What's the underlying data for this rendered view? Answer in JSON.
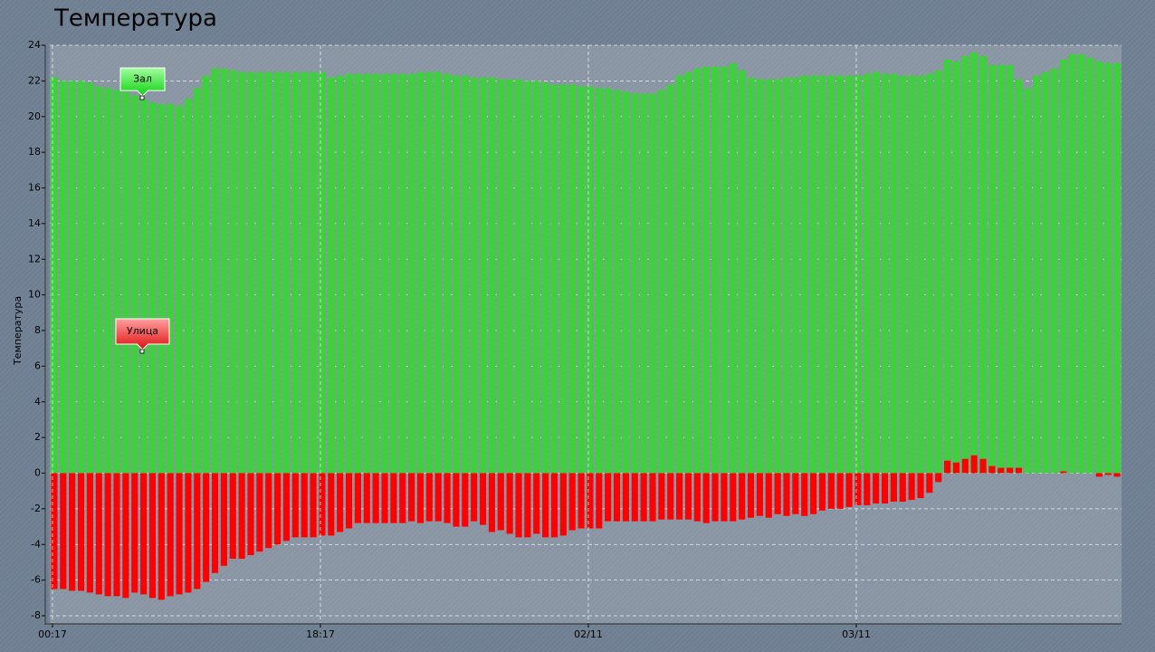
{
  "chart_data": {
    "type": "bar",
    "title": "Температура",
    "y_label": "Температура",
    "categories": [
      "00:17",
      null,
      null,
      null,
      null,
      null,
      null,
      null,
      null,
      null,
      null,
      null,
      null,
      null,
      null,
      null,
      null,
      null,
      null,
      null,
      null,
      null,
      null,
      null,
      null,
      null,
      null,
      null,
      null,
      null,
      "18:17",
      null,
      null,
      null,
      null,
      null,
      null,
      null,
      null,
      null,
      null,
      null,
      null,
      null,
      null,
      null,
      null,
      null,
      null,
      null,
      null,
      null,
      null,
      null,
      null,
      null,
      null,
      null,
      null,
      null,
      "02/11",
      null,
      null,
      null,
      null,
      null,
      null,
      null,
      null,
      null,
      null,
      null,
      null,
      null,
      null,
      null,
      null,
      null,
      null,
      null,
      null,
      null,
      null,
      null,
      null,
      null,
      null,
      null,
      null,
      null,
      "03/11",
      null,
      null,
      null,
      null,
      null,
      null,
      null,
      null,
      null,
      null,
      null,
      null,
      null,
      null,
      null,
      null,
      null,
      null,
      null,
      null,
      null,
      null,
      null,
      null,
      null,
      null,
      null,
      null,
      null
    ],
    "series": [
      {
        "name": "Зал",
        "color": "#3fcf3f",
        "values": [
          22.2,
          22.0,
          22.0,
          22.0,
          21.9,
          21.7,
          21.6,
          21.5,
          21.4,
          21.2,
          21.0,
          20.8,
          20.7,
          20.7,
          20.6,
          21.0,
          21.6,
          22.3,
          22.7,
          22.7,
          22.6,
          22.5,
          22.5,
          22.5,
          22.5,
          22.5,
          22.5,
          22.5,
          22.5,
          22.5,
          22.5,
          22.2,
          22.3,
          22.4,
          22.4,
          22.4,
          22.4,
          22.4,
          22.4,
          22.4,
          22.4,
          22.5,
          22.5,
          22.5,
          22.4,
          22.3,
          22.3,
          22.2,
          22.2,
          22.2,
          22.1,
          22.1,
          22.1,
          22.0,
          22.0,
          21.9,
          21.8,
          21.8,
          21.8,
          21.7,
          21.7,
          21.6,
          21.6,
          21.5,
          21.4,
          21.3,
          21.3,
          21.3,
          21.5,
          21.8,
          22.3,
          22.5,
          22.7,
          22.8,
          22.8,
          22.8,
          23.0,
          22.6,
          22.2,
          22.1,
          22.1,
          22.1,
          22.2,
          22.2,
          22.3,
          22.3,
          22.3,
          22.3,
          22.3,
          22.3,
          22.3,
          22.4,
          22.5,
          22.4,
          22.4,
          22.3,
          22.3,
          22.3,
          22.4,
          22.6,
          23.2,
          23.1,
          23.4,
          23.6,
          23.4,
          22.9,
          22.9,
          22.9,
          22.1,
          21.6,
          22.3,
          22.5,
          22.7,
          23.2,
          23.5,
          23.5,
          23.3,
          23.1,
          23.0,
          23.0
        ]
      },
      {
        "name": "Улица",
        "color": "#ff0000",
        "values": [
          -6.5,
          -6.5,
          -6.6,
          -6.6,
          -6.7,
          -6.8,
          -6.9,
          -6.9,
          -7.0,
          -6.7,
          -6.8,
          -7.0,
          -7.1,
          -6.9,
          -6.8,
          -6.7,
          -6.5,
          -6.1,
          -5.6,
          -5.2,
          -4.8,
          -4.8,
          -4.6,
          -4.4,
          -4.2,
          -4.0,
          -3.8,
          -3.6,
          -3.6,
          -3.6,
          -3.5,
          -3.5,
          -3.3,
          -3.1,
          -2.8,
          -2.8,
          -2.8,
          -2.8,
          -2.8,
          -2.8,
          -2.7,
          -2.8,
          -2.7,
          -2.7,
          -2.8,
          -3.0,
          -3.0,
          -2.7,
          -2.9,
          -3.3,
          -3.2,
          -3.4,
          -3.6,
          -3.6,
          -3.4,
          -3.6,
          -3.6,
          -3.5,
          -3.2,
          -3.1,
          -3.1,
          -3.1,
          -2.7,
          -2.7,
          -2.7,
          -2.7,
          -2.7,
          -2.7,
          -2.6,
          -2.6,
          -2.6,
          -2.6,
          -2.7,
          -2.8,
          -2.7,
          -2.7,
          -2.7,
          -2.6,
          -2.5,
          -2.4,
          -2.5,
          -2.3,
          -2.4,
          -2.3,
          -2.4,
          -2.3,
          -2.1,
          -2.0,
          -2.0,
          -1.9,
          -1.8,
          -1.8,
          -1.7,
          -1.7,
          -1.6,
          -1.6,
          -1.5,
          -1.4,
          -1.1,
          -0.5,
          0.7,
          0.6,
          0.8,
          1.0,
          0.8,
          0.4,
          0.3,
          0.3,
          0.3,
          0,
          0,
          0,
          0,
          0.1,
          0,
          0,
          0,
          -0.2,
          -0.1,
          -0.2
        ]
      }
    ],
    "ylim": [
      -8,
      24
    ],
    "yticks": [
      -8,
      -6,
      -4,
      -2,
      0,
      2,
      4,
      6,
      8,
      10,
      12,
      14,
      16,
      18,
      20,
      22,
      24
    ],
    "grid": true
  }
}
